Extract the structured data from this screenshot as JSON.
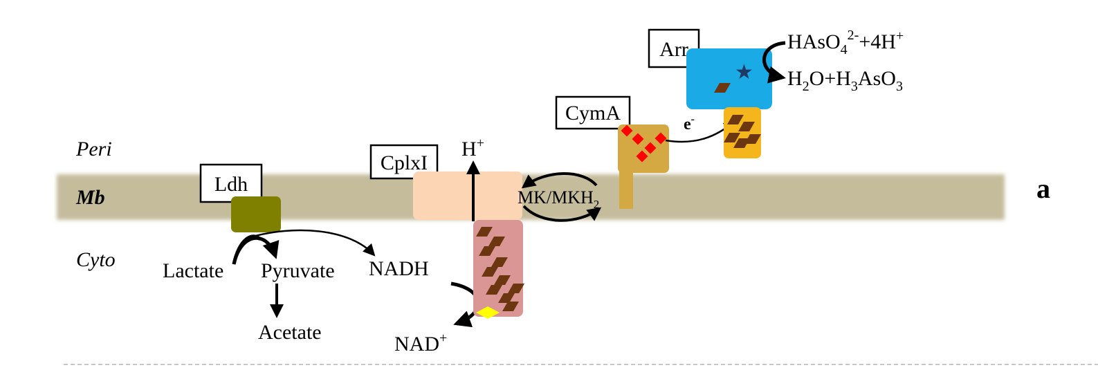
{
  "regions": {
    "periplasm": "Peri",
    "membrane": "Mb",
    "cytoplasm": "Cyto"
  },
  "panel_letter": "a",
  "proteins": {
    "ldh": "Ldh",
    "complex_i": "CplxI",
    "cyma": "CymA",
    "arr": "Arr"
  },
  "metabolites": {
    "lactate": "Lactate",
    "pyruvate": "Pyruvate",
    "acetate": "Acetate",
    "nadh": "NADH",
    "nad_plus": {
      "base": "NAD",
      "sup": "+"
    },
    "proton": {
      "base": "H",
      "sup": "+"
    },
    "electron": {
      "base": "e",
      "sup": "-"
    },
    "quinone": {
      "text": "MK/MKH",
      "sub": "2"
    },
    "arsenate": {
      "p1": "HAsO",
      "sub1": "4",
      "sup1": "2-",
      "p2": "+4H",
      "sup2": "+"
    },
    "arsenite": {
      "p1": "H",
      "sub1": "2",
      "p2": "O+H",
      "sub2": "3",
      "p3": "AsO",
      "sub3": "3"
    }
  },
  "colors": {
    "membrane": "#c5bc9c",
    "ldh": "#7f7f00",
    "complex_i_membrane": "#fcd5b5",
    "complex_i_cyto": "#d99694",
    "cyma": "#d4a843",
    "arr": "#1aabe6",
    "arr_subunit": "#f5b51c",
    "fe_s_cluster": "#6b3610",
    "heme": "#ff0000",
    "fmn": "#ffff00",
    "mo_cofactor": "#1f3864"
  }
}
